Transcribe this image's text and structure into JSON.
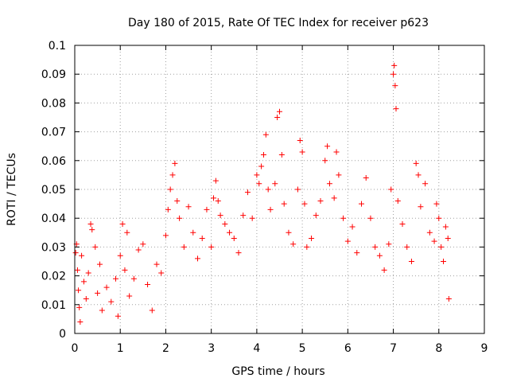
{
  "chart_data": {
    "type": "scatter",
    "title": "Day 180 of 2015, Rate Of TEC Index for receiver p623",
    "xlabel": "GPS time / hours",
    "ylabel": "ROTI / TECUs",
    "xlim": [
      0,
      9
    ],
    "ylim": [
      0,
      0.1
    ],
    "xticks": [
      "0",
      "1",
      "2",
      "3",
      "4",
      "5",
      "6",
      "7",
      "8",
      "9"
    ],
    "yticks": [
      "0",
      "0.01",
      "0.02",
      "0.03",
      "0.04",
      "0.05",
      "0.06",
      "0.07",
      "0.08",
      "0.09",
      "0.1"
    ],
    "grid": true,
    "marker": "+",
    "color": "#ff0000",
    "series": [
      {
        "name": "ROTI",
        "points": [
          [
            0.02,
            0.028
          ],
          [
            0.04,
            0.031
          ],
          [
            0.06,
            0.022
          ],
          [
            0.08,
            0.015
          ],
          [
            0.1,
            0.009
          ],
          [
            0.12,
            0.004
          ],
          [
            0.15,
            0.027
          ],
          [
            0.2,
            0.018
          ],
          [
            0.25,
            0.012
          ],
          [
            0.3,
            0.021
          ],
          [
            0.35,
            0.038
          ],
          [
            0.38,
            0.036
          ],
          [
            0.45,
            0.03
          ],
          [
            0.5,
            0.014
          ],
          [
            0.55,
            0.024
          ],
          [
            0.6,
            0.008
          ],
          [
            0.7,
            0.016
          ],
          [
            0.8,
            0.011
          ],
          [
            0.9,
            0.019
          ],
          [
            0.95,
            0.006
          ],
          [
            1.0,
            0.027
          ],
          [
            1.05,
            0.038
          ],
          [
            1.1,
            0.022
          ],
          [
            1.15,
            0.035
          ],
          [
            1.2,
            0.013
          ],
          [
            1.3,
            0.019
          ],
          [
            1.4,
            0.029
          ],
          [
            1.5,
            0.031
          ],
          [
            1.6,
            0.017
          ],
          [
            1.7,
            0.008
          ],
          [
            1.8,
            0.024
          ],
          [
            1.9,
            0.021
          ],
          [
            2.0,
            0.034
          ],
          [
            2.05,
            0.043
          ],
          [
            2.1,
            0.05
          ],
          [
            2.15,
            0.055
          ],
          [
            2.2,
            0.059
          ],
          [
            2.25,
            0.046
          ],
          [
            2.3,
            0.04
          ],
          [
            2.4,
            0.03
          ],
          [
            2.5,
            0.044
          ],
          [
            2.6,
            0.035
          ],
          [
            2.7,
            0.026
          ],
          [
            2.8,
            0.033
          ],
          [
            2.9,
            0.043
          ],
          [
            3.0,
            0.03
          ],
          [
            3.05,
            0.047
          ],
          [
            3.1,
            0.053
          ],
          [
            3.15,
            0.046
          ],
          [
            3.2,
            0.041
          ],
          [
            3.3,
            0.038
          ],
          [
            3.4,
            0.035
          ],
          [
            3.5,
            0.033
          ],
          [
            3.6,
            0.028
          ],
          [
            3.7,
            0.041
          ],
          [
            3.8,
            0.049
          ],
          [
            3.9,
            0.04
          ],
          [
            4.0,
            0.055
          ],
          [
            4.05,
            0.052
          ],
          [
            4.1,
            0.058
          ],
          [
            4.15,
            0.062
          ],
          [
            4.2,
            0.069
          ],
          [
            4.25,
            0.05
          ],
          [
            4.3,
            0.043
          ],
          [
            4.4,
            0.052
          ],
          [
            4.45,
            0.075
          ],
          [
            4.5,
            0.077
          ],
          [
            4.55,
            0.062
          ],
          [
            4.6,
            0.045
          ],
          [
            4.7,
            0.035
          ],
          [
            4.8,
            0.031
          ],
          [
            4.9,
            0.05
          ],
          [
            4.95,
            0.067
          ],
          [
            5.0,
            0.063
          ],
          [
            5.05,
            0.045
          ],
          [
            5.1,
            0.03
          ],
          [
            5.2,
            0.033
          ],
          [
            5.3,
            0.041
          ],
          [
            5.4,
            0.046
          ],
          [
            5.5,
            0.06
          ],
          [
            5.55,
            0.065
          ],
          [
            5.6,
            0.052
          ],
          [
            5.7,
            0.047
          ],
          [
            5.75,
            0.063
          ],
          [
            5.8,
            0.055
          ],
          [
            5.9,
            0.04
          ],
          [
            6.0,
            0.032
          ],
          [
            6.1,
            0.037
          ],
          [
            6.2,
            0.028
          ],
          [
            6.3,
            0.045
          ],
          [
            6.4,
            0.054
          ],
          [
            6.5,
            0.04
          ],
          [
            6.6,
            0.03
          ],
          [
            6.7,
            0.027
          ],
          [
            6.8,
            0.022
          ],
          [
            6.9,
            0.031
          ],
          [
            6.95,
            0.05
          ],
          [
            7.0,
            0.09
          ],
          [
            7.02,
            0.093
          ],
          [
            7.04,
            0.086
          ],
          [
            7.06,
            0.078
          ],
          [
            7.1,
            0.046
          ],
          [
            7.2,
            0.038
          ],
          [
            7.3,
            0.03
          ],
          [
            7.4,
            0.025
          ],
          [
            7.5,
            0.059
          ],
          [
            7.55,
            0.055
          ],
          [
            7.6,
            0.044
          ],
          [
            7.7,
            0.052
          ],
          [
            7.8,
            0.035
          ],
          [
            7.9,
            0.032
          ],
          [
            7.95,
            0.045
          ],
          [
            8.0,
            0.04
          ],
          [
            8.05,
            0.03
          ],
          [
            8.1,
            0.025
          ],
          [
            8.15,
            0.037
          ],
          [
            8.2,
            0.033
          ],
          [
            8.22,
            0.012
          ]
        ]
      }
    ]
  }
}
